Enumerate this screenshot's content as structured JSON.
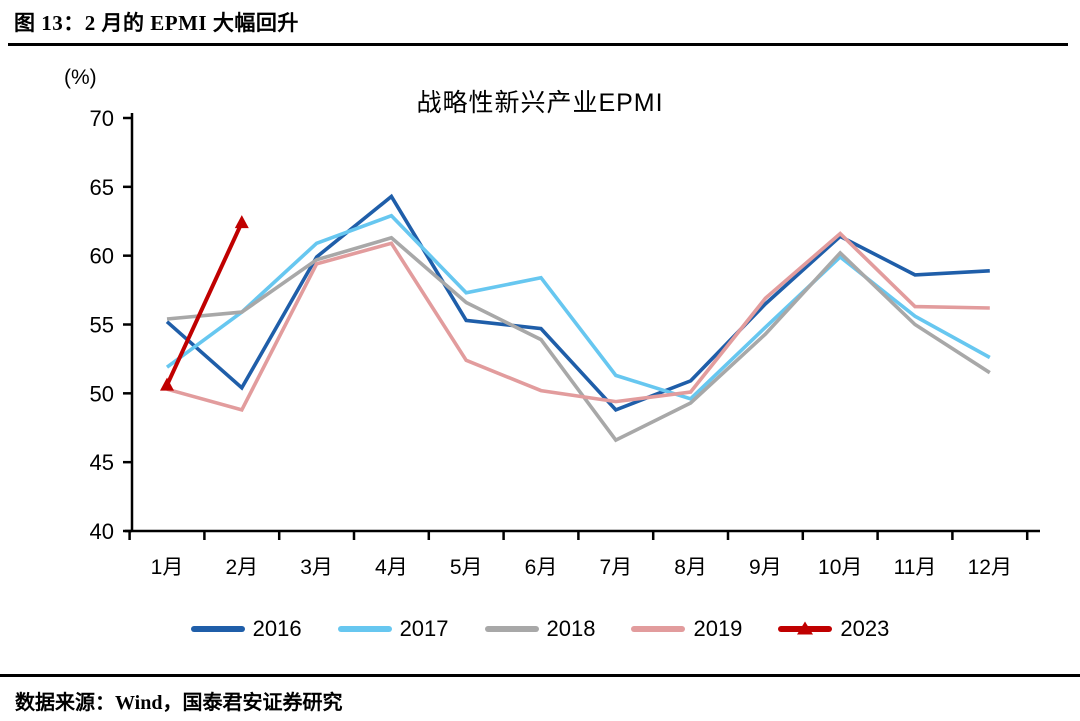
{
  "header": {
    "figure_title": "图 13：2 月的 EPMI 大幅回升"
  },
  "footer": {
    "source": "数据来源：Wind，国泰君安证券研究"
  },
  "chart_data": {
    "type": "line",
    "title": "战略性新兴产业EPMI",
    "y_unit_label": "(%)",
    "categories": [
      "1月",
      "2月",
      "3月",
      "4月",
      "5月",
      "6月",
      "7月",
      "8月",
      "9月",
      "10月",
      "11月",
      "12月"
    ],
    "ylim": [
      40,
      70
    ],
    "yticks": [
      70,
      65,
      60,
      55,
      50,
      45,
      40
    ],
    "grid": false,
    "legend_position": "bottom",
    "axis_color": "#000000",
    "series": [
      {
        "name": "2016",
        "color": "#1F5EA9",
        "marker": "none",
        "values": [
          55.2,
          50.4,
          59.9,
          64.3,
          55.3,
          54.7,
          48.8,
          50.9,
          56.5,
          61.4,
          58.6,
          58.9
        ]
      },
      {
        "name": "2017",
        "color": "#67C7F0",
        "marker": "none",
        "values": [
          51.9,
          55.9,
          60.9,
          62.9,
          57.3,
          58.4,
          51.3,
          49.6,
          54.8,
          59.9,
          55.6,
          52.6
        ]
      },
      {
        "name": "2018",
        "color": "#A8A8A8",
        "marker": "none",
        "values": [
          55.4,
          55.9,
          59.7,
          61.3,
          56.6,
          53.9,
          46.6,
          49.3,
          54.3,
          60.2,
          55.0,
          51.5
        ]
      },
      {
        "name": "2019",
        "color": "#E29C9D",
        "marker": "none",
        "values": [
          50.3,
          48.8,
          59.4,
          60.9,
          52.4,
          50.2,
          49.4,
          50.1,
          56.9,
          61.6,
          56.3,
          56.2
        ]
      },
      {
        "name": "2023",
        "color": "#C00000",
        "marker": "triangle",
        "values": [
          50.6,
          62.4,
          null,
          null,
          null,
          null,
          null,
          null,
          null,
          null,
          null,
          null
        ]
      }
    ]
  }
}
